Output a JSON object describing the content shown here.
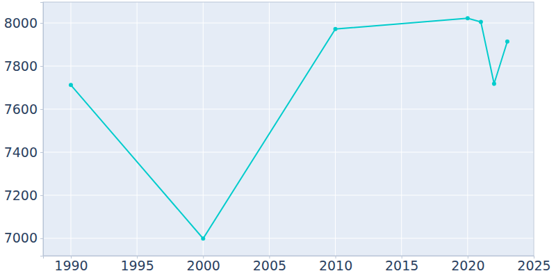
{
  "chart_data": {
    "type": "line",
    "x": [
      1990,
      2000,
      2010,
      2020,
      2021,
      2022,
      2023
    ],
    "values": [
      7712,
      6999,
      7972,
      8022,
      8005,
      7718,
      7914
    ],
    "color": "#00cccc",
    "marker": "circle",
    "grid": true,
    "xlim": [
      1987.9,
      2025
    ],
    "xticks": [
      1990,
      1995,
      2000,
      2005,
      2010,
      2015,
      2020,
      2025
    ],
    "ylim": [
      6919,
      8097
    ],
    "yticks": [
      7000,
      7200,
      7400,
      7600,
      7800,
      8000
    ]
  }
}
